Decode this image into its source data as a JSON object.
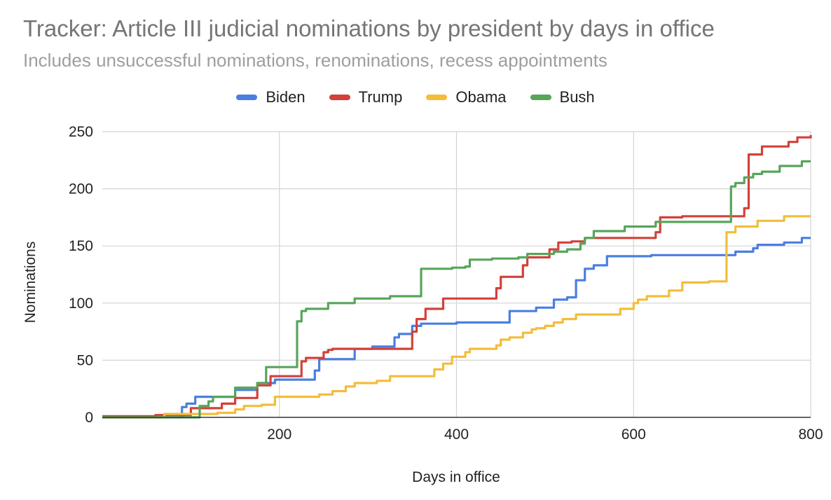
{
  "title": "Tracker: Article III judicial nominations by president by days in office",
  "subtitle": "Includes unsuccessful nominations, renominations, recess appointments",
  "chart_data": {
    "type": "line",
    "title": "Tracker: Article III judicial nominations by president by days in office",
    "subtitle": "Includes unsuccessful nominations, renominations, recess appointments",
    "xlabel": "Days in office",
    "ylabel": "Nominations",
    "xlim": [
      0,
      800
    ],
    "ylim": [
      0,
      250
    ],
    "x_ticks": [
      200,
      400,
      600,
      800
    ],
    "y_ticks": [
      0,
      50,
      100,
      150,
      200,
      250
    ],
    "grid": true,
    "legend_position": "top",
    "step": true,
    "series": [
      {
        "name": "Biden",
        "color": "#4a7fe0",
        "points": [
          [
            0,
            0
          ],
          [
            90,
            0
          ],
          [
            90,
            9
          ],
          [
            95,
            9
          ],
          [
            95,
            12
          ],
          [
            105,
            12
          ],
          [
            105,
            18
          ],
          [
            150,
            18
          ],
          [
            150,
            24
          ],
          [
            175,
            24
          ],
          [
            175,
            30
          ],
          [
            195,
            30
          ],
          [
            195,
            33
          ],
          [
            240,
            33
          ],
          [
            240,
            41
          ],
          [
            245,
            41
          ],
          [
            245,
            51
          ],
          [
            285,
            51
          ],
          [
            285,
            60
          ],
          [
            305,
            60
          ],
          [
            305,
            62
          ],
          [
            330,
            62
          ],
          [
            330,
            70
          ],
          [
            335,
            70
          ],
          [
            335,
            73
          ],
          [
            350,
            73
          ],
          [
            350,
            80
          ],
          [
            360,
            80
          ],
          [
            360,
            82
          ],
          [
            400,
            82
          ],
          [
            400,
            83
          ],
          [
            460,
            83
          ],
          [
            460,
            93
          ],
          [
            490,
            93
          ],
          [
            490,
            96
          ],
          [
            510,
            96
          ],
          [
            510,
            103
          ],
          [
            525,
            103
          ],
          [
            525,
            105
          ],
          [
            535,
            105
          ],
          [
            535,
            120
          ],
          [
            545,
            120
          ],
          [
            545,
            130
          ],
          [
            555,
            130
          ],
          [
            555,
            133
          ],
          [
            570,
            133
          ],
          [
            570,
            141
          ],
          [
            620,
            141
          ],
          [
            620,
            142
          ],
          [
            715,
            142
          ],
          [
            715,
            145
          ],
          [
            735,
            145
          ],
          [
            735,
            148
          ],
          [
            740,
            148
          ],
          [
            740,
            151
          ],
          [
            770,
            151
          ],
          [
            770,
            153
          ],
          [
            790,
            153
          ],
          [
            790,
            157
          ],
          [
            800,
            157
          ]
        ]
      },
      {
        "name": "Trump",
        "color": "#d4403a",
        "points": [
          [
            0,
            1
          ],
          [
            60,
            1
          ],
          [
            60,
            2
          ],
          [
            100,
            2
          ],
          [
            100,
            8
          ],
          [
            135,
            8
          ],
          [
            135,
            12
          ],
          [
            150,
            12
          ],
          [
            150,
            17
          ],
          [
            175,
            17
          ],
          [
            175,
            28
          ],
          [
            190,
            28
          ],
          [
            190,
            36
          ],
          [
            225,
            36
          ],
          [
            225,
            49
          ],
          [
            230,
            49
          ],
          [
            230,
            52
          ],
          [
            250,
            52
          ],
          [
            250,
            57
          ],
          [
            255,
            57
          ],
          [
            255,
            59
          ],
          [
            260,
            59
          ],
          [
            260,
            60
          ],
          [
            350,
            60
          ],
          [
            350,
            75
          ],
          [
            355,
            75
          ],
          [
            355,
            86
          ],
          [
            365,
            86
          ],
          [
            365,
            95
          ],
          [
            385,
            95
          ],
          [
            385,
            104
          ],
          [
            445,
            104
          ],
          [
            445,
            113
          ],
          [
            450,
            113
          ],
          [
            450,
            123
          ],
          [
            475,
            123
          ],
          [
            475,
            133
          ],
          [
            480,
            133
          ],
          [
            480,
            140
          ],
          [
            505,
            140
          ],
          [
            505,
            147
          ],
          [
            515,
            147
          ],
          [
            515,
            153
          ],
          [
            530,
            153
          ],
          [
            530,
            154
          ],
          [
            545,
            154
          ],
          [
            545,
            157
          ],
          [
            625,
            157
          ],
          [
            625,
            162
          ],
          [
            630,
            162
          ],
          [
            630,
            175
          ],
          [
            655,
            175
          ],
          [
            655,
            176
          ],
          [
            725,
            176
          ],
          [
            725,
            183
          ],
          [
            730,
            183
          ],
          [
            730,
            230
          ],
          [
            745,
            230
          ],
          [
            745,
            237
          ],
          [
            775,
            237
          ],
          [
            775,
            241
          ],
          [
            785,
            241
          ],
          [
            785,
            245
          ],
          [
            800,
            245
          ],
          [
            800,
            247
          ]
        ]
      },
      {
        "name": "Obama",
        "color": "#f3bd3a",
        "points": [
          [
            0,
            0
          ],
          [
            70,
            0
          ],
          [
            70,
            3
          ],
          [
            130,
            3
          ],
          [
            130,
            4
          ],
          [
            150,
            4
          ],
          [
            150,
            7
          ],
          [
            160,
            7
          ],
          [
            160,
            10
          ],
          [
            180,
            10
          ],
          [
            180,
            11
          ],
          [
            195,
            11
          ],
          [
            195,
            18
          ],
          [
            245,
            18
          ],
          [
            245,
            20
          ],
          [
            260,
            20
          ],
          [
            260,
            23
          ],
          [
            275,
            23
          ],
          [
            275,
            27
          ],
          [
            285,
            27
          ],
          [
            285,
            30
          ],
          [
            310,
            30
          ],
          [
            310,
            32
          ],
          [
            325,
            32
          ],
          [
            325,
            36
          ],
          [
            345,
            36
          ],
          [
            345,
            36
          ],
          [
            375,
            36
          ],
          [
            375,
            42
          ],
          [
            385,
            42
          ],
          [
            385,
            47
          ],
          [
            395,
            47
          ],
          [
            395,
            53
          ],
          [
            410,
            53
          ],
          [
            410,
            57
          ],
          [
            415,
            57
          ],
          [
            415,
            60
          ],
          [
            445,
            60
          ],
          [
            445,
            63
          ],
          [
            450,
            63
          ],
          [
            450,
            68
          ],
          [
            460,
            68
          ],
          [
            460,
            70
          ],
          [
            475,
            70
          ],
          [
            475,
            74
          ],
          [
            485,
            74
          ],
          [
            485,
            77
          ],
          [
            490,
            77
          ],
          [
            490,
            78
          ],
          [
            500,
            78
          ],
          [
            500,
            80
          ],
          [
            510,
            80
          ],
          [
            510,
            83
          ],
          [
            520,
            83
          ],
          [
            520,
            86
          ],
          [
            535,
            86
          ],
          [
            535,
            90
          ],
          [
            585,
            90
          ],
          [
            585,
            95
          ],
          [
            600,
            95
          ],
          [
            600,
            100
          ],
          [
            605,
            100
          ],
          [
            605,
            103
          ],
          [
            615,
            103
          ],
          [
            615,
            106
          ],
          [
            640,
            106
          ],
          [
            640,
            111
          ],
          [
            655,
            111
          ],
          [
            655,
            118
          ],
          [
            685,
            118
          ],
          [
            685,
            119
          ],
          [
            705,
            119
          ],
          [
            705,
            162
          ],
          [
            715,
            162
          ],
          [
            715,
            167
          ],
          [
            740,
            167
          ],
          [
            740,
            172
          ],
          [
            770,
            172
          ],
          [
            770,
            176
          ],
          [
            800,
            176
          ]
        ]
      },
      {
        "name": "Bush",
        "color": "#57a55a",
        "points": [
          [
            0,
            0
          ],
          [
            110,
            0
          ],
          [
            110,
            10
          ],
          [
            120,
            10
          ],
          [
            120,
            14
          ],
          [
            125,
            14
          ],
          [
            125,
            18
          ],
          [
            150,
            18
          ],
          [
            150,
            26
          ],
          [
            175,
            26
          ],
          [
            175,
            30
          ],
          [
            185,
            30
          ],
          [
            185,
            44
          ],
          [
            220,
            44
          ],
          [
            220,
            84
          ],
          [
            225,
            84
          ],
          [
            225,
            93
          ],
          [
            230,
            93
          ],
          [
            230,
            95
          ],
          [
            255,
            95
          ],
          [
            255,
            100
          ],
          [
            285,
            100
          ],
          [
            285,
            104
          ],
          [
            325,
            104
          ],
          [
            325,
            106
          ],
          [
            360,
            106
          ],
          [
            360,
            130
          ],
          [
            395,
            130
          ],
          [
            395,
            131
          ],
          [
            410,
            131
          ],
          [
            410,
            132
          ],
          [
            415,
            132
          ],
          [
            415,
            138
          ],
          [
            440,
            138
          ],
          [
            440,
            139
          ],
          [
            470,
            139
          ],
          [
            470,
            140
          ],
          [
            480,
            140
          ],
          [
            480,
            143
          ],
          [
            510,
            143
          ],
          [
            510,
            145
          ],
          [
            525,
            145
          ],
          [
            525,
            147
          ],
          [
            540,
            147
          ],
          [
            540,
            152
          ],
          [
            545,
            152
          ],
          [
            545,
            157
          ],
          [
            555,
            157
          ],
          [
            555,
            163
          ],
          [
            590,
            163
          ],
          [
            590,
            167
          ],
          [
            625,
            167
          ],
          [
            625,
            171
          ],
          [
            710,
            171
          ],
          [
            710,
            202
          ],
          [
            715,
            202
          ],
          [
            715,
            205
          ],
          [
            725,
            205
          ],
          [
            725,
            210
          ],
          [
            735,
            210
          ],
          [
            735,
            213
          ],
          [
            745,
            213
          ],
          [
            745,
            215
          ],
          [
            765,
            215
          ],
          [
            765,
            220
          ],
          [
            790,
            220
          ],
          [
            790,
            224
          ],
          [
            800,
            224
          ]
        ]
      }
    ]
  }
}
